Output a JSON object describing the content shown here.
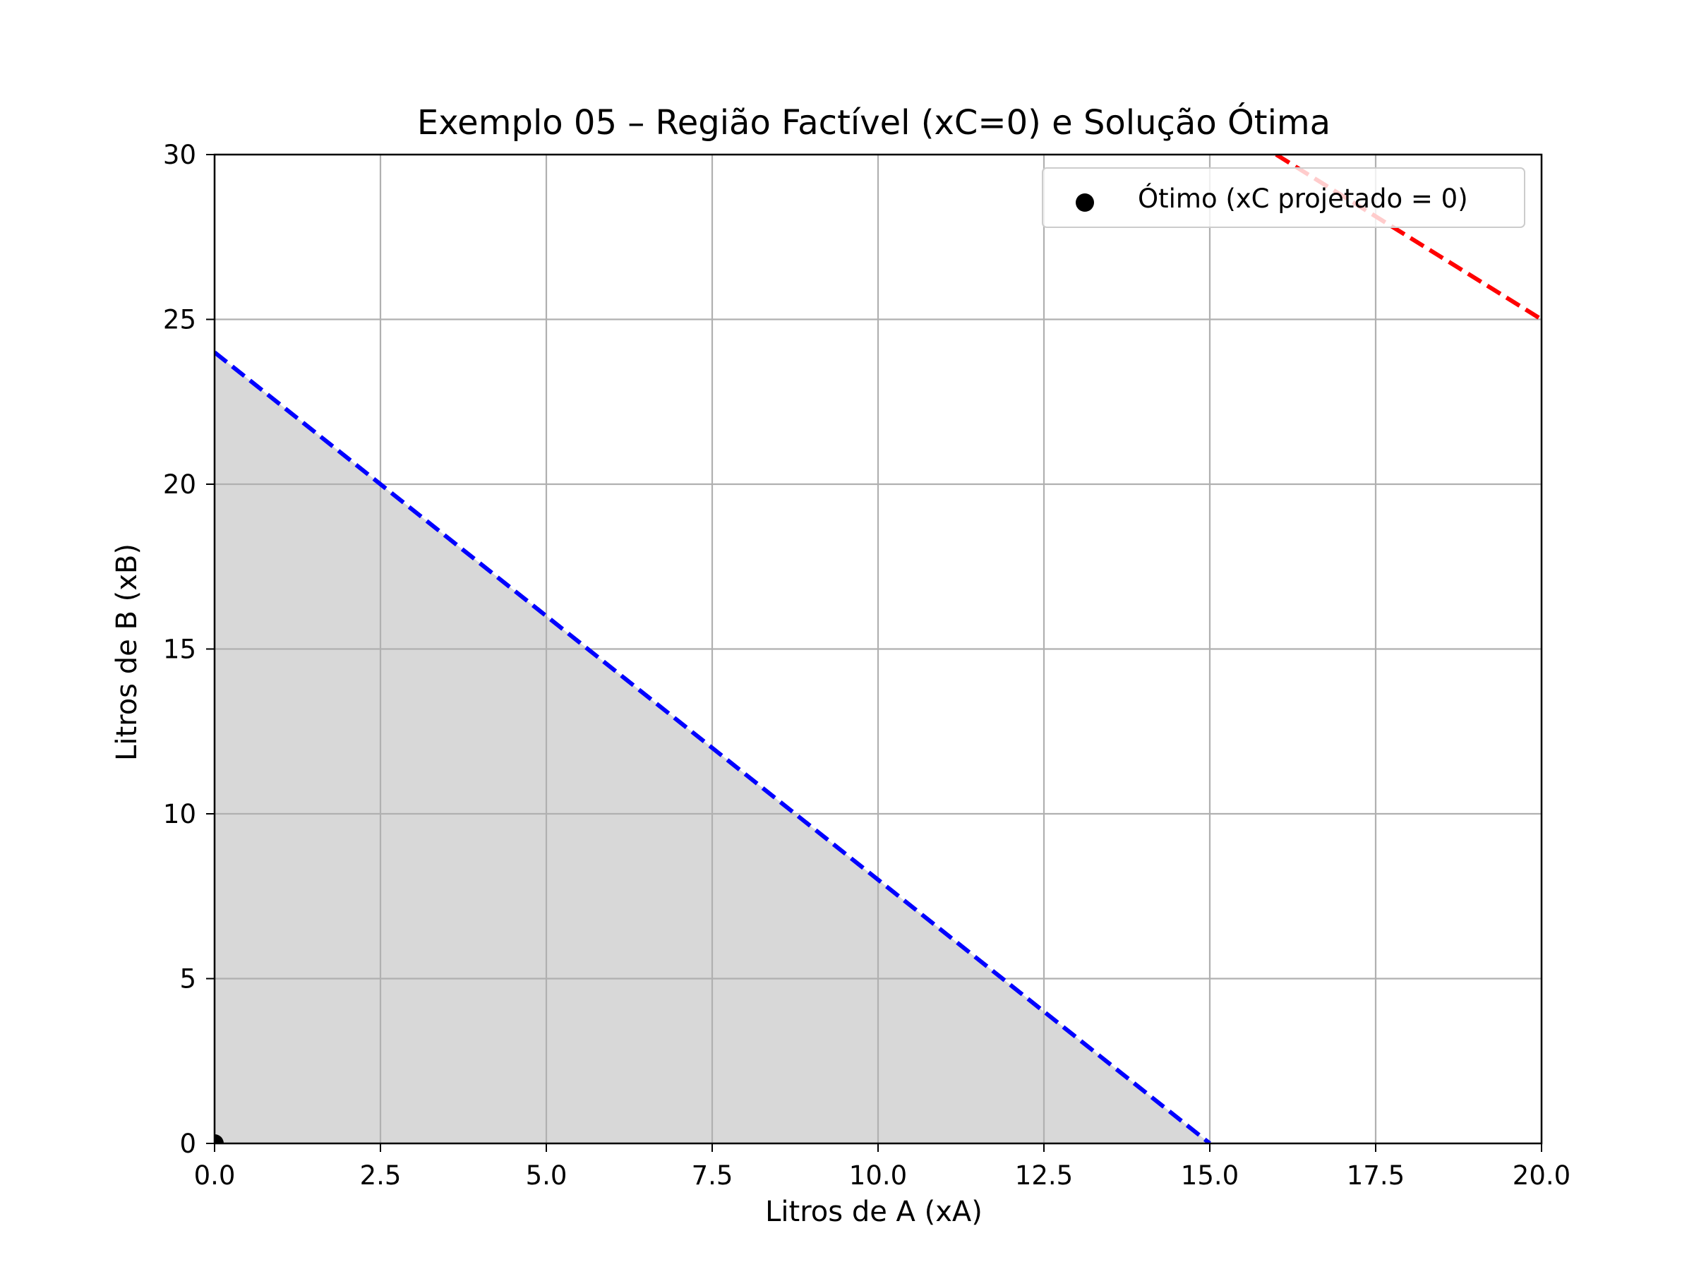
{
  "chart_data": {
    "type": "line",
    "title": "Exemplo 05 – Região Factível (xC=0) e Solução Ótima",
    "xlabel": "Litros de A (xA)",
    "ylabel": "Litros de B (xB)",
    "xlim": [
      0,
      20
    ],
    "ylim": [
      0,
      30
    ],
    "xticks": [
      "0.0",
      "2.5",
      "5.0",
      "7.5",
      "10.0",
      "12.5",
      "15.0",
      "17.5",
      "20.0"
    ],
    "yticks": [
      "0",
      "5",
      "10",
      "15",
      "20",
      "25",
      "30"
    ],
    "grid": true,
    "legend_position": "top-right",
    "feasible_region": {
      "vertices": [
        [
          0,
          0
        ],
        [
          0,
          24
        ],
        [
          15,
          0
        ]
      ],
      "color": "#d8d8d8"
    },
    "series": [
      {
        "style": "dashed",
        "color": "#0000ff",
        "points": [
          [
            0,
            24
          ],
          [
            15,
            0
          ]
        ]
      },
      {
        "style": "dashed",
        "color": "#ff0000",
        "points": [
          [
            16,
            30
          ],
          [
            20,
            25
          ]
        ]
      }
    ],
    "optimum": {
      "name": "Ótimo (xC projetado = 0)",
      "x": 0,
      "y": 0,
      "color": "#000000"
    }
  }
}
